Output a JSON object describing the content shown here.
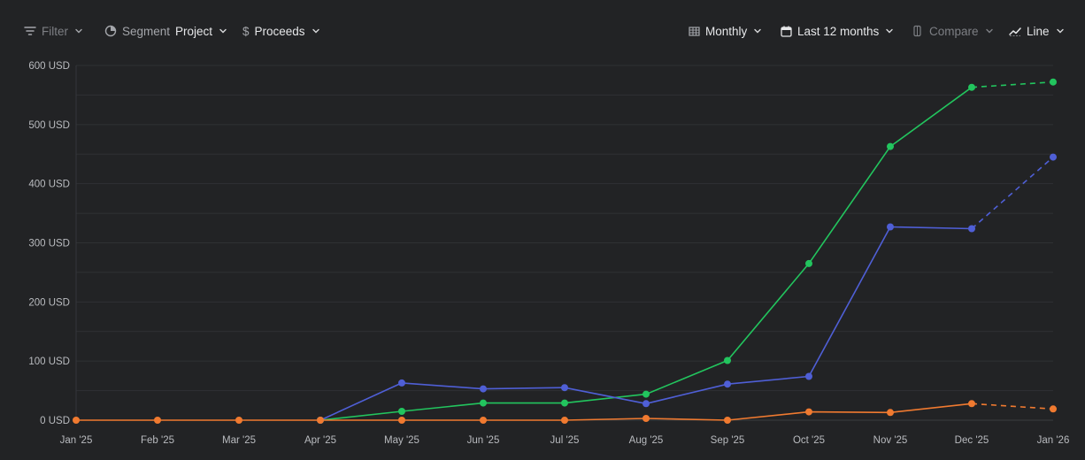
{
  "toolbar": {
    "filter_label": "Filter",
    "segment_label": "Segment",
    "segment_value": "Project",
    "metric_symbol": "$",
    "metric_label": "Proceeds",
    "interval_label": "Monthly",
    "range_label": "Last 12 months",
    "compare_label": "Compare",
    "chart_type_label": "Line",
    "icons": {
      "filter": "filter-icon",
      "segment": "pie-chart-icon",
      "interval": "table-icon",
      "range": "calendar-icon",
      "compare": "compare-icon",
      "chart_type": "line-chart-icon"
    }
  },
  "chart_data": {
    "type": "line",
    "x": [
      "Jan '25",
      "Feb '25",
      "Mar '25",
      "Apr '25",
      "May '25",
      "Jun '25",
      "Jul '25",
      "Aug '25",
      "Sep '25",
      "Oct '25",
      "Nov '25",
      "Dec '25",
      "Jan '26"
    ],
    "y_ticks": [
      0,
      100,
      200,
      300,
      400,
      500,
      600
    ],
    "y_tick_labels": [
      "0 USD",
      "100 USD",
      "200 USD",
      "300 USD",
      "400 USD",
      "500 USD",
      "600 USD"
    ],
    "ylim": [
      0,
      600
    ],
    "grid": true,
    "projected_from_index": 11,
    "series": [
      {
        "color": "#22c55e",
        "values": [
          null,
          null,
          null,
          0,
          15,
          29,
          29,
          44,
          101,
          265,
          463,
          563,
          572
        ]
      },
      {
        "color": "#4f5fd6",
        "values": [
          null,
          null,
          null,
          0,
          63,
          53,
          55,
          28,
          61,
          74,
          327,
          324,
          445
        ]
      },
      {
        "color": "#f07a30",
        "values": [
          0,
          0,
          0,
          0,
          0,
          0,
          0,
          3,
          0,
          14,
          13,
          28,
          19
        ]
      }
    ]
  }
}
